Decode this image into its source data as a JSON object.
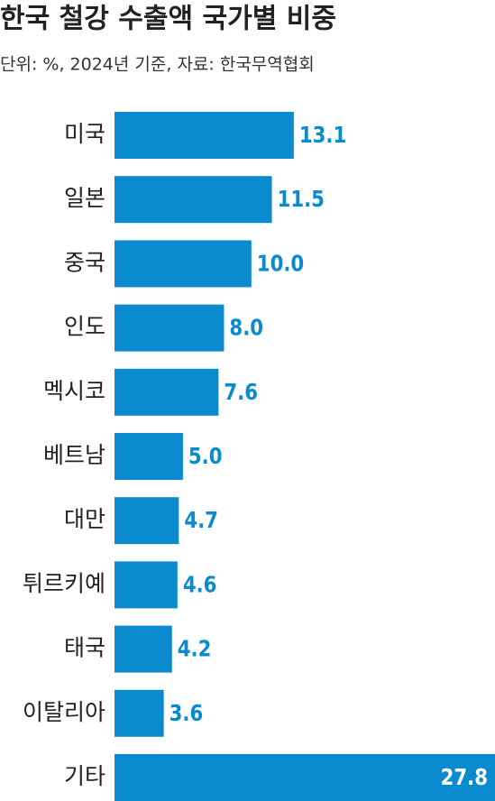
{
  "chart_data": {
    "type": "bar",
    "orientation": "horizontal",
    "title": "한국 철강 수출액 국가별 비중",
    "subtitle": "단위: %, 2024년 기준, 자료: 한국무역협회",
    "categories": [
      "미국",
      "일본",
      "중국",
      "인도",
      "멕시코",
      "베트남",
      "대만",
      "튀르키예",
      "태국",
      "이탈리아",
      "기타"
    ],
    "values": [
      13.1,
      11.5,
      10.0,
      8.0,
      7.6,
      5.0,
      4.7,
      4.6,
      4.2,
      3.6,
      27.8
    ],
    "value_labels": [
      "13.1",
      "11.5",
      "10.0",
      "8.0",
      "7.6",
      "5.0",
      "4.7",
      "4.6",
      "4.2",
      "3.6",
      "27.8"
    ],
    "color": "#0a8acf"
  }
}
